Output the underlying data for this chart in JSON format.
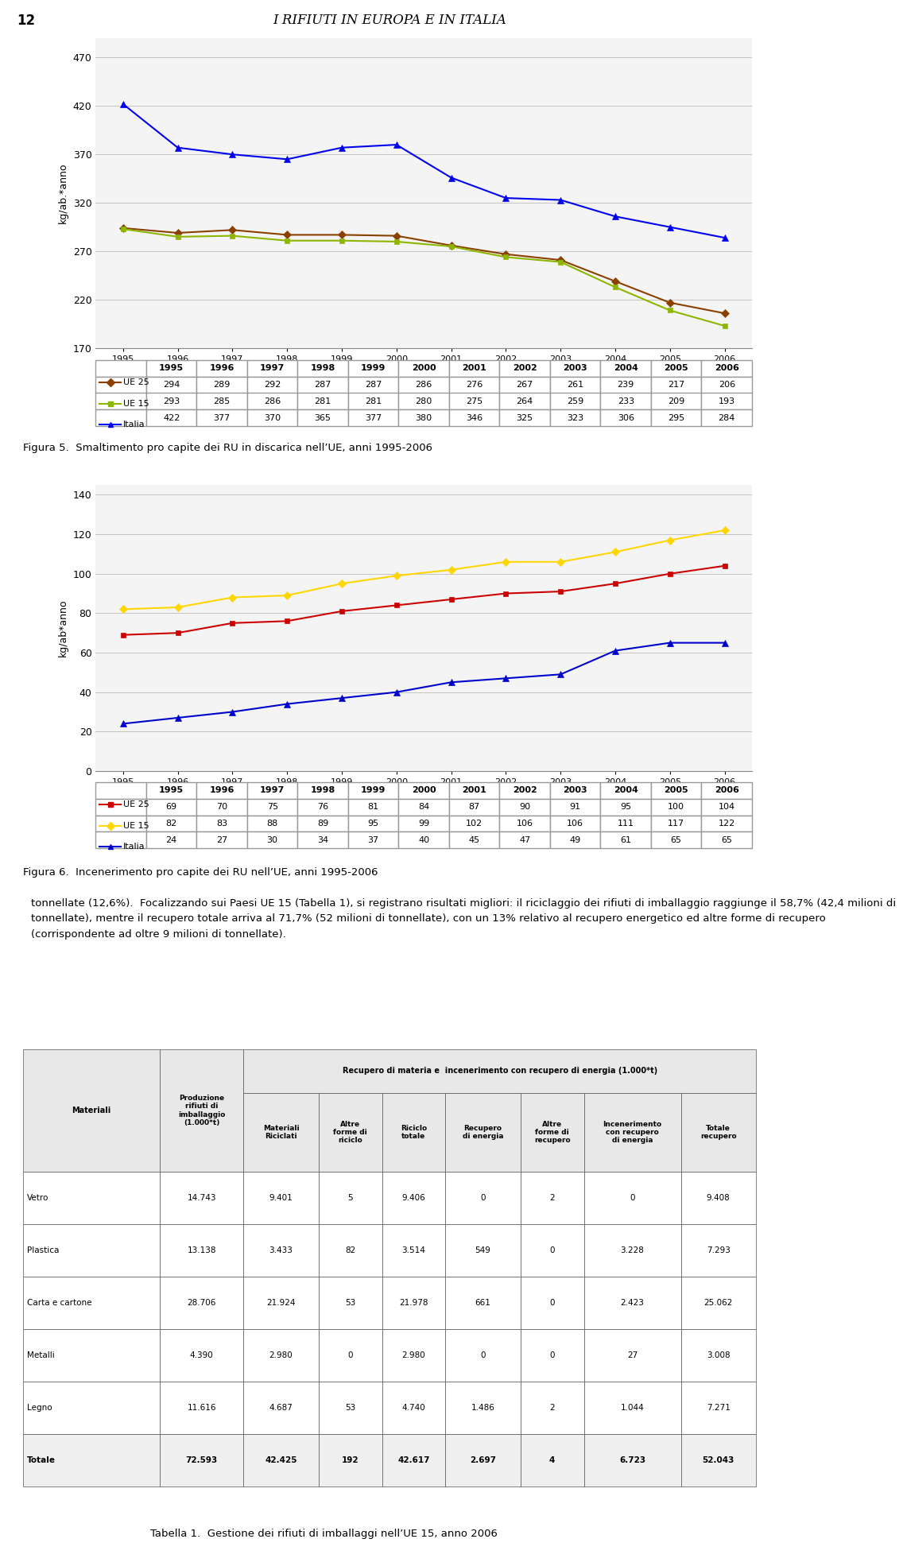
{
  "page_num": "12",
  "page_title": "I RIFIUTI IN EUROPA E IN ITALIA",
  "fig5_caption": "Figura 5.  Smaltimento pro capite dei RU in discarica nell’UE, anni 1995-2006",
  "fig6_caption": "Figura 6.  Incenerimento pro capite dei RU nell’UE, anni 1995-2006",
  "years": [
    1995,
    1996,
    1997,
    1998,
    1999,
    2000,
    2001,
    2002,
    2003,
    2004,
    2005,
    2006
  ],
  "fig5": {
    "ue25": [
      294,
      289,
      292,
      287,
      287,
      286,
      276,
      267,
      261,
      239,
      217,
      206
    ],
    "ue15": [
      293,
      285,
      286,
      281,
      281,
      280,
      275,
      264,
      259,
      233,
      209,
      193
    ],
    "italia": [
      422,
      377,
      370,
      365,
      377,
      380,
      346,
      325,
      323,
      306,
      295,
      284
    ],
    "ylabel": "kg/ab.*anno",
    "ylim": [
      170,
      490
    ],
    "yticks": [
      170,
      220,
      270,
      320,
      370,
      420,
      470
    ],
    "color_ue25": "#8B4000",
    "color_ue15": "#8DB600",
    "color_italia": "#0000EE"
  },
  "fig6": {
    "ue25": [
      69,
      70,
      75,
      76,
      81,
      84,
      87,
      90,
      91,
      95,
      100,
      104
    ],
    "ue15": [
      82,
      83,
      88,
      89,
      95,
      99,
      102,
      106,
      106,
      111,
      117,
      122
    ],
    "italia": [
      24,
      27,
      30,
      34,
      37,
      40,
      45,
      47,
      49,
      61,
      65,
      65
    ],
    "ylabel": "kg/ab*anno",
    "ylim": [
      0,
      145
    ],
    "yticks": [
      0,
      20,
      40,
      60,
      80,
      100,
      120,
      140
    ],
    "color_ue25": "#CC0000",
    "color_ue15": "#FFD700",
    "color_italia": "#0000CD"
  },
  "table1_caption": "Tabella 1.  Gestione dei rifiuti di imballaggi nell’UE 15, anno 2006",
  "table1_data": [
    [
      "Vetro",
      "14.743",
      "9.401",
      "5",
      "9.406",
      "0",
      "2",
      "0",
      "9.408"
    ],
    [
      "Plastica",
      "13.138",
      "3.433",
      "82",
      "3.514",
      "549",
      "0",
      "3.228",
      "7.293"
    ],
    [
      "Carta e cartone",
      "28.706",
      "21.924",
      "53",
      "21.978",
      "661",
      "0",
      "2.423",
      "25.062"
    ],
    [
      "Metalli",
      "4.390",
      "2.980",
      "0",
      "2.980",
      "0",
      "0",
      "27",
      "3.008"
    ],
    [
      "Legno",
      "11.616",
      "4.687",
      "53",
      "4.740",
      "1.486",
      "2",
      "1.044",
      "7.271"
    ],
    [
      "Totale",
      "72.593",
      "42.425",
      "192",
      "42.617",
      "2.697",
      "4",
      "6.723",
      "52.043"
    ]
  ],
  "body_text_line1": "tonnellate (12,6%).  Focalizzando sui Paesi UE 15 (Tabella 1), si registrano risultati migliori: il riciclaggio dei rifiuti di imballaggio raggiunge il 58,7% (42,4 milioni di",
  "body_text_line2": "tonnellate), mentre il recupero totale arriva al 71,7% (52 milioni di tonnellate), con un 13% relativo al recupero energetico ed altre forme di recupero",
  "body_text_line3": "(corrispondente ad oltre 9 milioni di tonnellate)."
}
